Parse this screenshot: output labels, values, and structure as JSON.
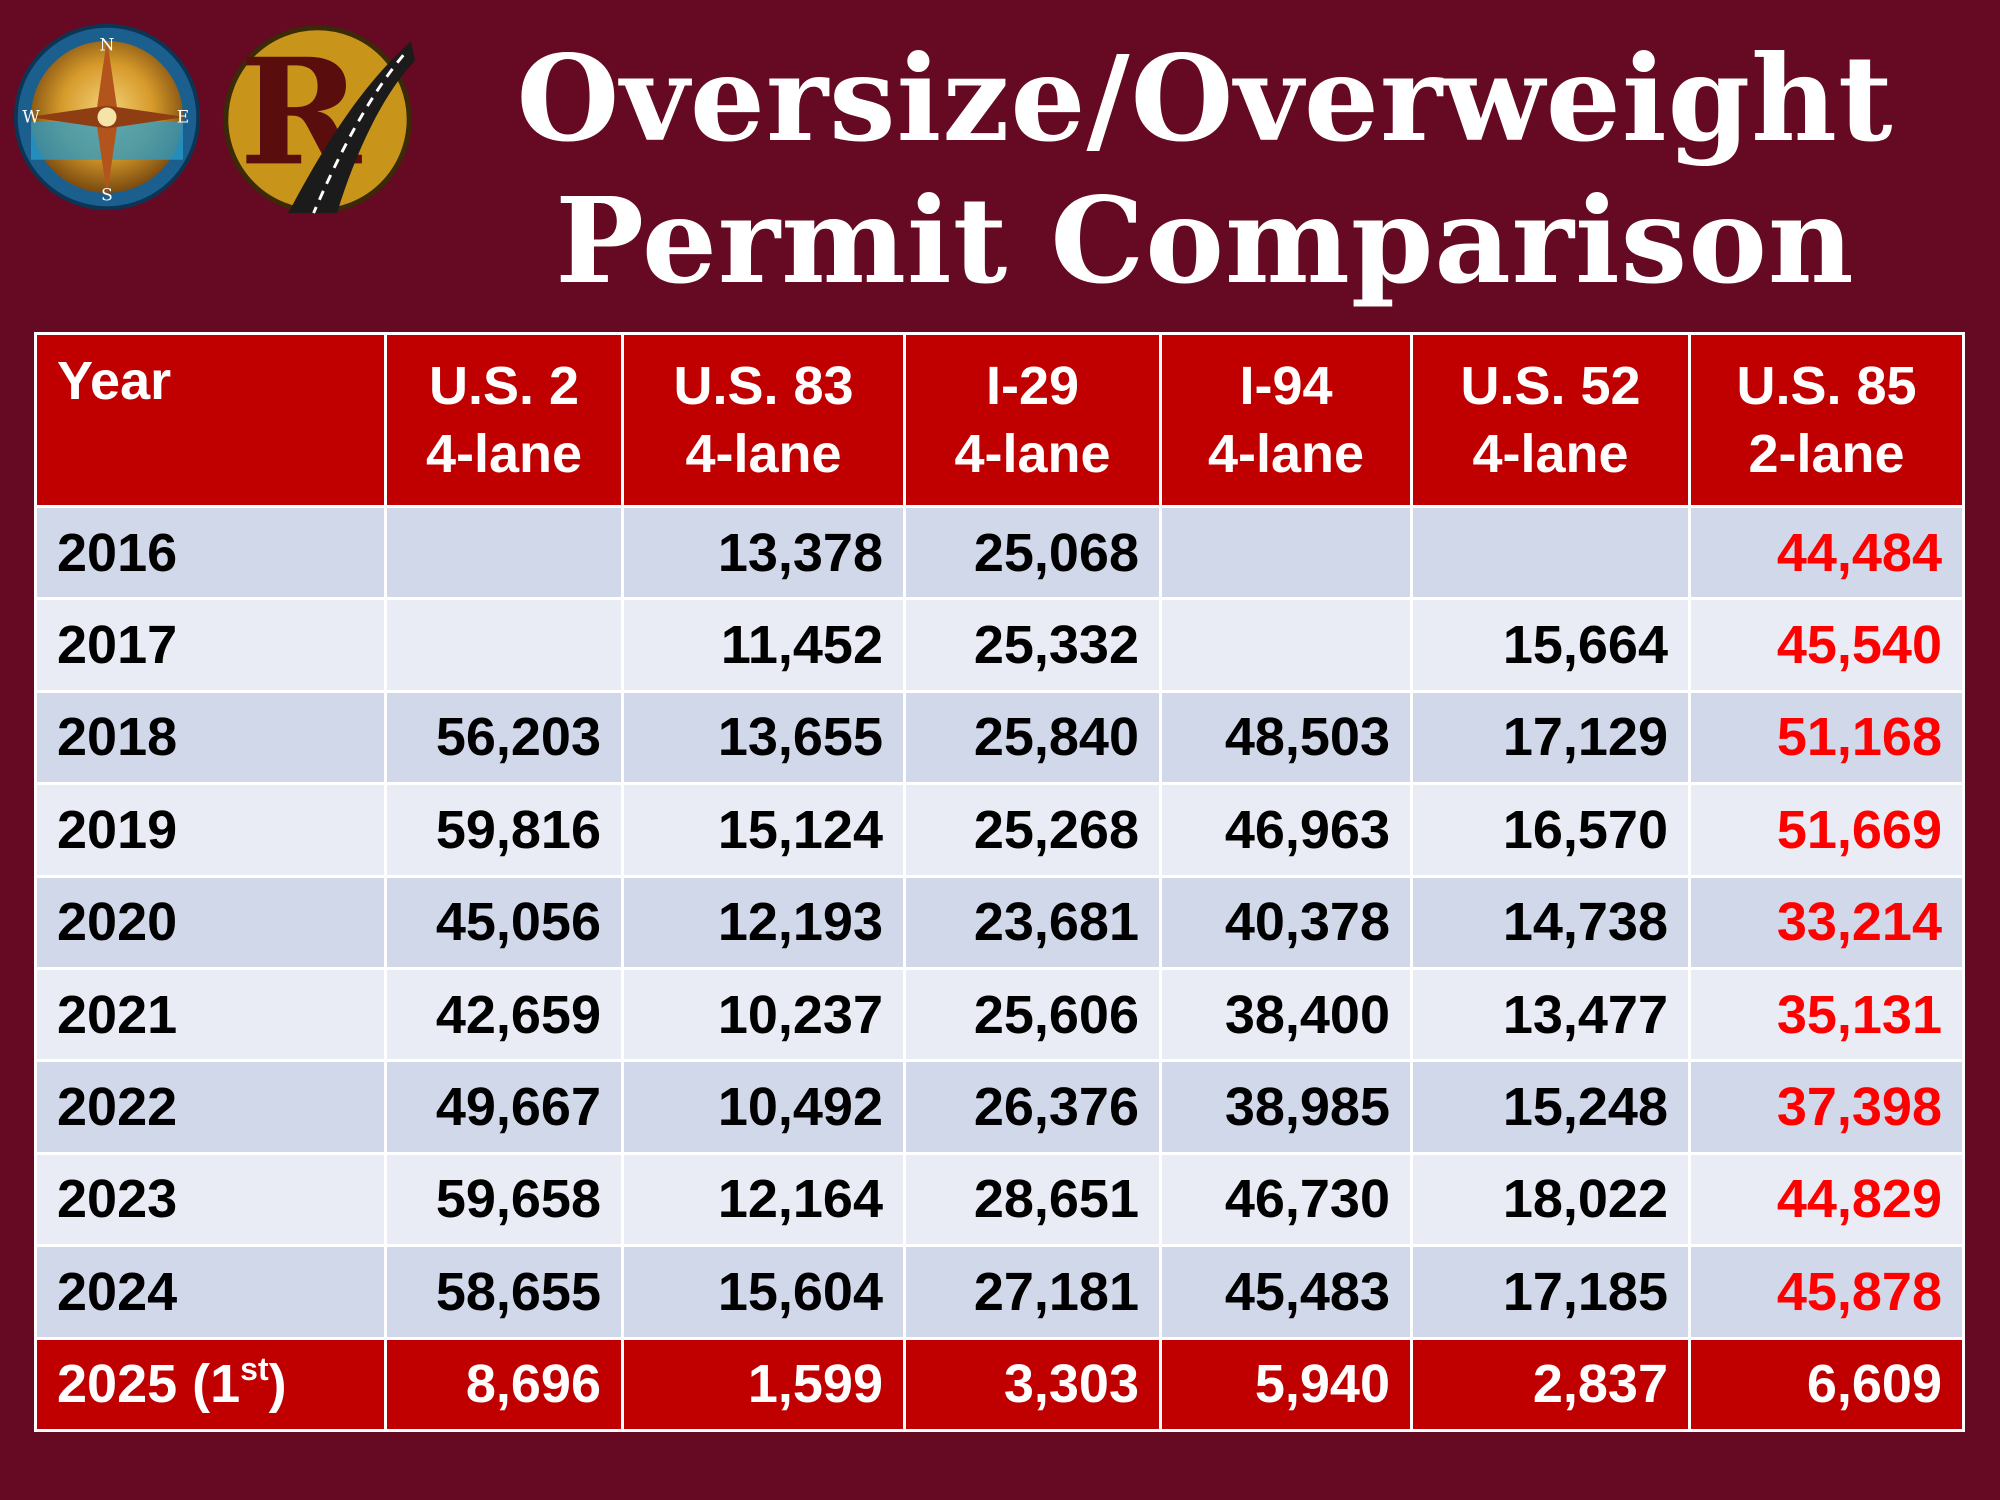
{
  "title": {
    "line1": "Oversize/Overweight",
    "line2": "Permit Comparison"
  },
  "logos": {
    "compass": {
      "icon": "compass-rose-icon",
      "letters": [
        "N",
        "E",
        "S",
        "W"
      ],
      "colors": [
        "#1a6fa8",
        "#c8860a",
        "#e8c14a"
      ]
    },
    "road": {
      "icon": "highway-r-logo-icon",
      "colors": [
        "#c8941a",
        "#5a0d0d",
        "#1b1b1b"
      ]
    }
  },
  "table": {
    "headers": [
      {
        "line1": "Year",
        "line2": ""
      },
      {
        "line1": "U.S. 2",
        "line2": "4-lane"
      },
      {
        "line1": "U.S. 83",
        "line2": "4-lane"
      },
      {
        "line1": "I-29",
        "line2": "4-lane"
      },
      {
        "line1": "I-94",
        "line2": "4-lane"
      },
      {
        "line1": "U.S. 52",
        "line2": "4-lane"
      },
      {
        "line1": "U.S. 85",
        "line2": "2-lane"
      }
    ],
    "rows": [
      {
        "year": "2016",
        "cells": [
          "",
          "13,378",
          "25,068",
          "",
          "",
          "44,484"
        ]
      },
      {
        "year": "2017",
        "cells": [
          "",
          "11,452",
          "25,332",
          "",
          "15,664",
          "45,540"
        ]
      },
      {
        "year": "2018",
        "cells": [
          "56,203",
          "13,655",
          "25,840",
          "48,503",
          "17,129",
          "51,168"
        ]
      },
      {
        "year": "2019",
        "cells": [
          "59,816",
          "15,124",
          "25,268",
          "46,963",
          "16,570",
          "51,669"
        ]
      },
      {
        "year": "2020",
        "cells": [
          "45,056",
          "12,193",
          "23,681",
          "40,378",
          "14,738",
          "33,214"
        ]
      },
      {
        "year": "2021",
        "cells": [
          "42,659",
          "10,237",
          "25,606",
          "38,400",
          "13,477",
          "35,131"
        ]
      },
      {
        "year": "2022",
        "cells": [
          "49,667",
          "10,492",
          "26,376",
          "38,985",
          "15,248",
          "37,398"
        ]
      },
      {
        "year": "2023",
        "cells": [
          "59,658",
          "12,164",
          "28,651",
          "46,730",
          "18,022",
          "44,829"
        ]
      },
      {
        "year": "2024",
        "cells": [
          "58,655",
          "15,604",
          "27,181",
          "45,483",
          "17,185",
          "45,878"
        ]
      }
    ],
    "final_row": {
      "year": "2025 (1",
      "year_sup": "st",
      "year_close": ")",
      "cells": [
        "8,696",
        "1,599",
        "3,303",
        "5,940",
        "2,837",
        "6,609"
      ]
    },
    "colors": {
      "header_bg": "#c00000",
      "row_odd_bg": "#d0d8ea",
      "row_even_bg": "#e9ecf4",
      "highlight_text": "#ff0000",
      "page_bg": "#650a22"
    }
  }
}
